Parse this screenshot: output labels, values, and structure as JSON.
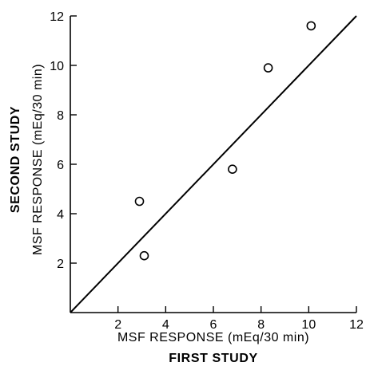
{
  "chart_data": {
    "type": "scatter",
    "title": "",
    "xlabel": "MSF RESPONSE (mEq/30 min)",
    "xtitle": "FIRST STUDY",
    "ylabel": "MSF RESPONSE (mEq/30 min)",
    "ytitle": "SECOND STUDY",
    "xlim": [
      0,
      12
    ],
    "ylim": [
      0,
      12
    ],
    "xticks": [
      "2",
      "4",
      "6",
      "8",
      "10",
      "12"
    ],
    "yticks": [
      "2",
      "4",
      "6",
      "8",
      "10",
      "12"
    ],
    "grid": false,
    "legend": "none",
    "points": [
      {
        "x": 2.9,
        "y": 4.5
      },
      {
        "x": 3.1,
        "y": 2.3
      },
      {
        "x": 6.8,
        "y": 5.8
      },
      {
        "x": 8.3,
        "y": 9.9
      },
      {
        "x": 10.1,
        "y": 11.6
      }
    ],
    "reference_line": {
      "type": "identity",
      "from": [
        0,
        0
      ],
      "to": [
        12,
        12
      ]
    },
    "colors": {
      "ink": "#000000",
      "background": "#ffffff",
      "marker_fill": "#ffffff"
    }
  }
}
